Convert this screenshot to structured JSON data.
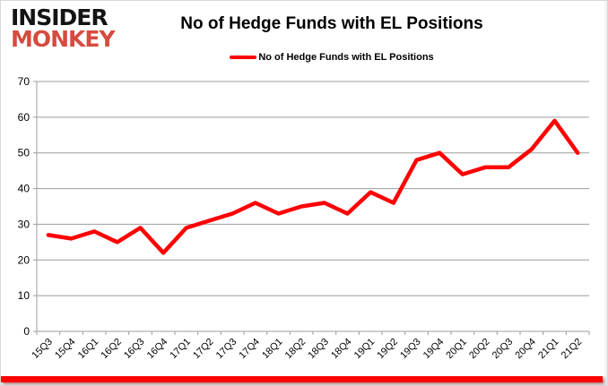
{
  "brand": {
    "line1": "INSIDER",
    "line2": "MONKEY",
    "line1_color": "#141414",
    "line2_color": "#d54c3f"
  },
  "header": {
    "title": "No of Hedge Funds with EL Positions"
  },
  "legend": {
    "label": "No of Hedge Funds with EL Positions",
    "line_color": "#ff0000"
  },
  "chart_data": {
    "type": "line",
    "title": "No of Hedge Funds with EL Positions",
    "categories": [
      "15Q3",
      "15Q4",
      "16Q1",
      "16Q2",
      "16Q3",
      "16Q4",
      "17Q1",
      "17Q2",
      "17Q3",
      "17Q4",
      "18Q1",
      "18Q2",
      "18Q3",
      "18Q4",
      "19Q1",
      "19Q2",
      "19Q3",
      "19Q4",
      "20Q1",
      "20Q2",
      "20Q3",
      "20Q4",
      "21Q1",
      "21Q2"
    ],
    "series": [
      {
        "name": "No of Hedge Funds with EL Positions",
        "color": "#ff0000",
        "values": [
          27,
          26,
          28,
          25,
          29,
          22,
          29,
          31,
          33,
          36,
          33,
          35,
          36,
          33,
          39,
          36,
          48,
          50,
          44,
          46,
          46,
          51,
          59,
          50
        ]
      }
    ],
    "xlabel": "",
    "ylabel": "",
    "ylim": [
      0,
      70
    ],
    "yticks": [
      0,
      10,
      20,
      30,
      40,
      50,
      60,
      70
    ],
    "grid": "horizontal",
    "gridline_color": "#9c9c9c",
    "legend_position": "top"
  },
  "footer": {
    "accent_bar_color": "#fb0205"
  }
}
